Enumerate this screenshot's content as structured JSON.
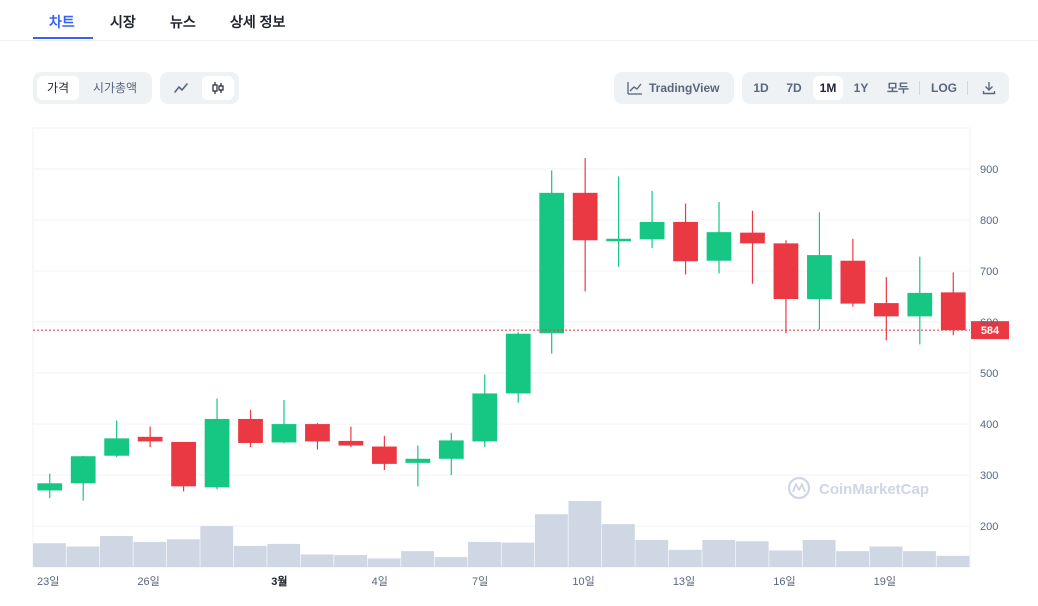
{
  "tabs": [
    "차트",
    "시장",
    "뉴스",
    "상세 정보"
  ],
  "toolbar": {
    "price_label": "가격",
    "marketcap_label": "시가총액",
    "tradingview_label": "TradingView",
    "ranges": [
      "1D",
      "7D",
      "1M",
      "1Y",
      "모두"
    ],
    "selected_range": "1M",
    "log_label": "LOG",
    "icons": {
      "line": "line-chart-icon",
      "candle": "candlestick-icon",
      "tv": "tradingview-icon",
      "download": "download-icon"
    }
  },
  "watermark": "CoinMarketCap",
  "colors": {
    "up": "#16c784",
    "down": "#ea3943",
    "volume": "#cfd6e4",
    "accent": "#3861fb",
    "current": "#ea3943"
  },
  "chart_data": {
    "type": "candlestick",
    "current_price": 584,
    "current_price_label": "584",
    "ylim": [
      120,
      980
    ],
    "y_ticks": [
      900,
      800,
      700,
      600,
      500,
      400,
      300,
      200
    ],
    "x_tick_labels": [
      {
        "index": 0,
        "label": "23일"
      },
      {
        "index": 3,
        "label": "26일"
      },
      {
        "index": 7,
        "label": "3월"
      },
      {
        "index": 10,
        "label": "4일"
      },
      {
        "index": 13,
        "label": "7일"
      },
      {
        "index": 16,
        "label": "10일"
      },
      {
        "index": 19,
        "label": "13일"
      },
      {
        "index": 22,
        "label": "16일"
      },
      {
        "index": 25,
        "label": "19일"
      }
    ],
    "candles": [
      {
        "o": 270,
        "h": 303,
        "l": 255,
        "c": 284
      },
      {
        "o": 284,
        "h": 338,
        "l": 250,
        "c": 337
      },
      {
        "o": 338,
        "h": 407,
        "l": 335,
        "c": 372
      },
      {
        "o": 375,
        "h": 395,
        "l": 355,
        "c": 366
      },
      {
        "o": 365,
        "h": 365,
        "l": 268,
        "c": 278
      },
      {
        "o": 276,
        "h": 450,
        "l": 272,
        "c": 410
      },
      {
        "o": 410,
        "h": 428,
        "l": 355,
        "c": 363
      },
      {
        "o": 364,
        "h": 447,
        "l": 362,
        "c": 400
      },
      {
        "o": 400,
        "h": 402,
        "l": 350,
        "c": 366
      },
      {
        "o": 367,
        "h": 395,
        "l": 355,
        "c": 358
      },
      {
        "o": 356,
        "h": 377,
        "l": 310,
        "c": 322
      },
      {
        "o": 324,
        "h": 358,
        "l": 278,
        "c": 332
      },
      {
        "o": 332,
        "h": 383,
        "l": 300,
        "c": 368
      },
      {
        "o": 366,
        "h": 497,
        "l": 355,
        "c": 460
      },
      {
        "o": 460,
        "h": 580,
        "l": 442,
        "c": 577
      },
      {
        "o": 578,
        "h": 897,
        "l": 538,
        "c": 853
      },
      {
        "o": 853,
        "h": 921,
        "l": 660,
        "c": 760
      },
      {
        "o": 760,
        "h": 885,
        "l": 708,
        "c": 763
      },
      {
        "o": 762,
        "h": 857,
        "l": 745,
        "c": 796
      },
      {
        "o": 796,
        "h": 832,
        "l": 693,
        "c": 719
      },
      {
        "o": 720,
        "h": 835,
        "l": 695,
        "c": 776
      },
      {
        "o": 775,
        "h": 818,
        "l": 675,
        "c": 754
      },
      {
        "o": 754,
        "h": 760,
        "l": 578,
        "c": 645
      },
      {
        "o": 645,
        "h": 815,
        "l": 585,
        "c": 731
      },
      {
        "o": 720,
        "h": 763,
        "l": 630,
        "c": 636
      },
      {
        "o": 637,
        "h": 688,
        "l": 564,
        "c": 611
      },
      {
        "o": 611,
        "h": 728,
        "l": 556,
        "c": 657
      },
      {
        "o": 658,
        "h": 697,
        "l": 574,
        "c": 584
      }
    ],
    "volume_relative": [
      0.36,
      0.31,
      0.47,
      0.38,
      0.42,
      0.62,
      0.32,
      0.35,
      0.19,
      0.18,
      0.13,
      0.24,
      0.15,
      0.38,
      0.37,
      0.8,
      1.0,
      0.65,
      0.41,
      0.26,
      0.41,
      0.39,
      0.25,
      0.41,
      0.24,
      0.31,
      0.24,
      0.17
    ]
  }
}
